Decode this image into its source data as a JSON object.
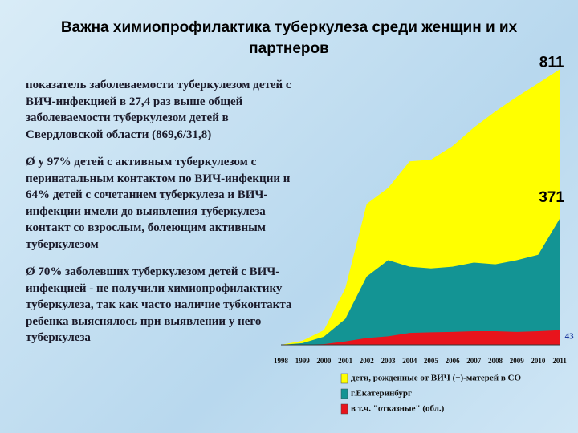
{
  "title": "Важна химиопрофилактика туберкулеза среди женщин и их партнеров",
  "paragraphs": [
    "показатель заболеваемости туберкулезом детей с ВИЧ-инфекцией в 27,4 раз выше общей заболеваемости туберкулезом детей в Свердловской области (869,6/31,8)",
    "Ø у 97% детей с активным туберкулезом с перинатальным контактом по ВИЧ-инфекции и 64% детей с сочетанием туберкулеза и ВИЧ-инфекции имели до выявления туберкулеза контакт со взрослым, болеющим активным туберкулезом",
    "Ø 70% заболевших туберкулезом детей с ВИЧ-инфекцией - не получили химиопрофилактику туберкулеза, так как часто наличие тубконтакта ребенка выяснялось при выявлении у него туберкулеза"
  ],
  "chart_data": {
    "type": "area",
    "categories": [
      "1998",
      "1999",
      "2000",
      "2001",
      "2002",
      "2003",
      "2004",
      "2005",
      "2006",
      "2007",
      "2008",
      "2009",
      "2010",
      "2011"
    ],
    "ylim": [
      0,
      850
    ],
    "series": [
      {
        "name": "дети, рожденные от ВИЧ (+)-матерей в СО",
        "color": "#ffff00",
        "values": [
          0,
          12,
          43,
          166,
          415,
          462,
          540,
          545,
          585,
          640,
          687,
          730,
          770,
          811
        ]
      },
      {
        "name": "г.Екатеринбург",
        "color": "#139494",
        "values": [
          0,
          5,
          24,
          76,
          201,
          249,
          230,
          225,
          230,
          242,
          237,
          249,
          265,
          371
        ]
      },
      {
        "name": "в т.ч. \"отказные\" (обл.)",
        "color": "#e8141c",
        "values": [
          0,
          0,
          2,
          10,
          20,
          25,
          35,
          37,
          38,
          40,
          40,
          38,
          40,
          43
        ]
      }
    ]
  }
}
